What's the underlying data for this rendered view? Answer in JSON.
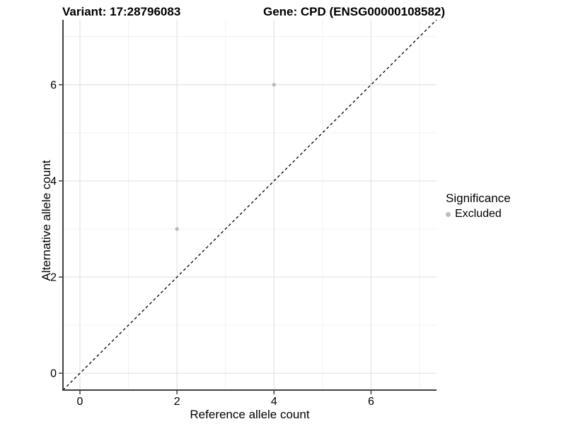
{
  "header": {
    "variant_title": "Variant: 17:28796083",
    "gene_title": "Gene: CPD (ENSG00000108582)"
  },
  "chart_data": {
    "type": "scatter",
    "xlabel": "Reference allele count",
    "ylabel": "Alternative allele count",
    "x_ticks": [
      0,
      2,
      4,
      6
    ],
    "y_ticks": [
      0,
      2,
      4,
      6
    ],
    "x_minor_ticks": [
      1,
      3,
      5,
      7
    ],
    "y_minor_ticks": [
      1,
      3,
      5,
      7
    ],
    "xlim": [
      -0.35,
      7.35
    ],
    "ylim": [
      -0.35,
      7.35
    ],
    "grid": true,
    "points": [
      {
        "x": 2,
        "y": 3,
        "series": "Excluded"
      },
      {
        "x": 4,
        "y": 6,
        "series": "Excluded"
      }
    ],
    "reference_line": {
      "slope": 1,
      "intercept": 0,
      "style": "dashed",
      "color": "#000000"
    },
    "legend": {
      "title": "Significance",
      "position": "right",
      "items": [
        {
          "label": "Excluded",
          "color": "#bcbcbc",
          "marker": "circle"
        }
      ]
    },
    "colors": {
      "point": "#b9b9b9",
      "axis_line": "#404040",
      "grid_major": "#e3e3e3",
      "grid_minor": "#f0f0f0",
      "background": "#ffffff",
      "text": "#000000"
    }
  }
}
